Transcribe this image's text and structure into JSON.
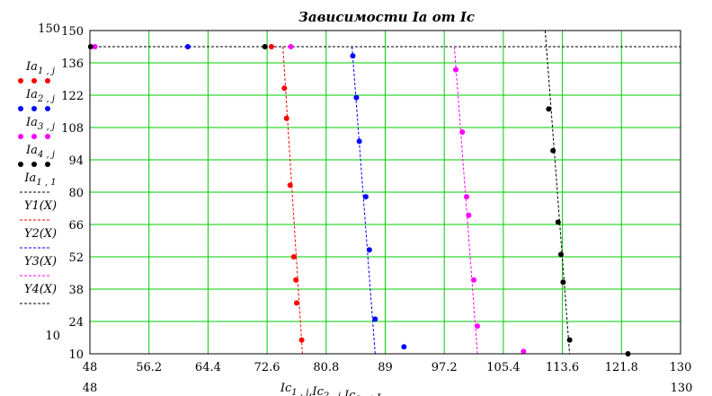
{
  "chart_data": {
    "type": "scatter",
    "title": "Зависимости Ia от Ic",
    "xlim": [
      48,
      130
    ],
    "ylim": [
      10,
      150
    ],
    "x_ticks": [
      "48",
      "56.2",
      "64.4",
      "72.6",
      "80.8",
      "89",
      "97.2",
      "105.4",
      "113.6",
      "121.8",
      "130"
    ],
    "y_ticks": [
      "150",
      "136",
      "122",
      "108",
      "94",
      "80",
      "66",
      "52",
      "38",
      "24",
      "10"
    ],
    "x_range_labels": {
      "min": "48",
      "max": "130"
    },
    "y_range_labels": {
      "max": "150",
      "min": "10"
    },
    "xlabel": {
      "main": "Ic",
      "parts": [
        {
          "base": "Ic",
          "sub": "1 , j"
        },
        {
          "base": ",Ic",
          "sub": "2 , j"
        },
        {
          "base": ",Ic",
          "sub": "3 , j"
        },
        {
          "base": ",Ic",
          "sub": "4 , j"
        },
        {
          "base": ", X , X , X , X , X",
          "sub": ""
        }
      ]
    },
    "grid": true,
    "legend_position": "left",
    "series": [
      {
        "name": "Ia1,j",
        "base": "Ia",
        "sub": "1 , j",
        "kind": "points",
        "color": "#ff0000",
        "points": [
          [
            73.2,
            143
          ],
          [
            75.0,
            125
          ],
          [
            75.3,
            112
          ],
          [
            75.8,
            83
          ],
          [
            76.3,
            52
          ],
          [
            76.6,
            42
          ],
          [
            76.7,
            32
          ],
          [
            77.4,
            16
          ]
        ]
      },
      {
        "name": "Ia2,j",
        "base": "Ia",
        "sub": "2 , j",
        "kind": "points",
        "color": "#0000ff",
        "points": [
          [
            61.6,
            143
          ],
          [
            84.5,
            139
          ],
          [
            85.0,
            121
          ],
          [
            85.4,
            102
          ],
          [
            86.3,
            78
          ],
          [
            86.8,
            55
          ],
          [
            87.6,
            25
          ],
          [
            91.6,
            13
          ]
        ]
      },
      {
        "name": "Ia3,j",
        "base": "Ia",
        "sub": "3 , j",
        "kind": "points",
        "color": "#ff00ff",
        "points": [
          [
            48.7,
            143
          ],
          [
            75.9,
            143
          ],
          [
            98.8,
            133
          ],
          [
            99.7,
            106
          ],
          [
            100.3,
            78
          ],
          [
            100.6,
            70
          ],
          [
            101.3,
            42
          ],
          [
            101.8,
            22
          ],
          [
            108.2,
            11
          ]
        ]
      },
      {
        "name": "Ia4,j",
        "base": "Ia",
        "sub": "4 , j",
        "kind": "points",
        "color": "#000000",
        "points": [
          [
            48.1,
            143
          ],
          [
            72.3,
            143
          ],
          [
            111.7,
            116
          ],
          [
            112.3,
            98
          ],
          [
            113.0,
            67
          ],
          [
            113.4,
            53
          ],
          [
            113.7,
            41
          ],
          [
            114.6,
            16
          ],
          [
            122.7,
            10
          ]
        ]
      },
      {
        "name": "Ia1,1",
        "base": "Ia",
        "sub": "1 , 1",
        "kind": "hline",
        "color": "#000000",
        "y": 143
      },
      {
        "name": "Y1(X)",
        "base": "Y1(X)",
        "sub": "",
        "kind": "line",
        "color": "#ff0000",
        "points": [
          [
            74.8,
            143
          ],
          [
            77.5,
            10
          ]
        ]
      },
      {
        "name": "Y2(X)",
        "base": "Y2(X)",
        "sub": "",
        "kind": "line",
        "color": "#0000ff",
        "points": [
          [
            84.4,
            143
          ],
          [
            87.6,
            10
          ]
        ]
      },
      {
        "name": "Y3(X)",
        "base": "Y3(X)",
        "sub": "",
        "kind": "line",
        "color": "#ff00ff",
        "points": [
          [
            98.6,
            143
          ],
          [
            101.8,
            10
          ]
        ]
      },
      {
        "name": "Y4(X)",
        "base": "Y4(X)",
        "sub": "",
        "kind": "line",
        "color": "#000000",
        "points": [
          [
            111.2,
            150
          ],
          [
            114.6,
            10
          ]
        ]
      }
    ]
  }
}
